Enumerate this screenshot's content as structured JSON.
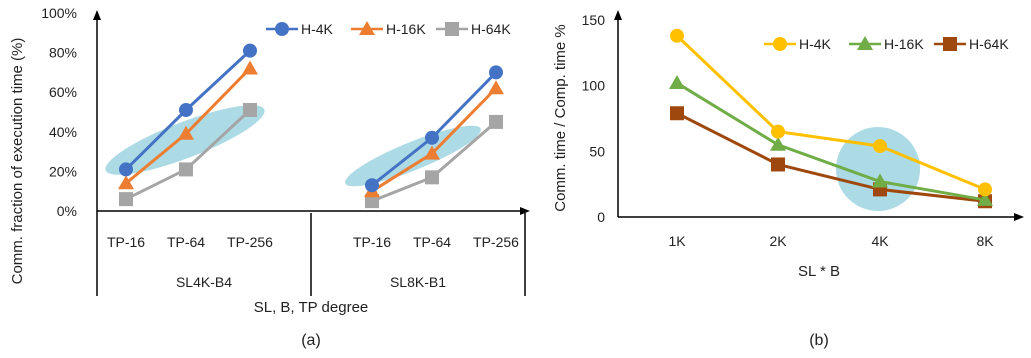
{
  "chart_data": [
    {
      "type": "line",
      "caption": "(a)",
      "title": "",
      "xlabel": "SL, B, TP degree",
      "ylabel": "Comm. fraction of execution time (%)",
      "ylim": [
        0,
        100
      ],
      "y_ticks": [
        "0%",
        "20%",
        "40%",
        "60%",
        "80%",
        "100%"
      ],
      "legend_position": "top-right",
      "groups": [
        {
          "label": "SL4K-B4",
          "categories": [
            "TP-16",
            "TP-64",
            "TP-256"
          ]
        },
        {
          "label": "SL8K-B1",
          "categories": [
            "TP-16",
            "TP-64",
            "TP-256"
          ]
        }
      ],
      "series": [
        {
          "name": "H-4K",
          "color": "#4472C4",
          "marker": "circle",
          "values": [
            [
              21,
              51,
              81
            ],
            [
              13,
              37,
              70
            ]
          ]
        },
        {
          "name": "H-16K",
          "color": "#ED7D31",
          "marker": "triangle",
          "values": [
            [
              14,
              39,
              72
            ],
            [
              10,
              29,
              62
            ]
          ]
        },
        {
          "name": "H-64K",
          "color": "#A5A5A5",
          "marker": "square",
          "values": [
            [
              6,
              21,
              51
            ],
            [
              5,
              17,
              45
            ]
          ]
        }
      ],
      "highlight_color": "#9DD3E0"
    },
    {
      "type": "line",
      "caption": "(b)",
      "title": "",
      "xlabel": "SL * B",
      "ylabel": "Comm. time / Comp. time %",
      "ylim": [
        0,
        150
      ],
      "y_ticks": [
        "0",
        "50",
        "100",
        "150"
      ],
      "categories": [
        "1K",
        "2K",
        "4K",
        "8K"
      ],
      "legend_position": "top-right",
      "series": [
        {
          "name": "H-4K",
          "color": "#FFC000",
          "marker": "circle",
          "values": [
            138,
            65,
            54,
            21
          ]
        },
        {
          "name": "H-16K",
          "color": "#70AD47",
          "marker": "triangle",
          "values": [
            102,
            55,
            27,
            13
          ]
        },
        {
          "name": "H-64K",
          "color": "#9E480E",
          "marker": "square",
          "values": [
            79,
            40,
            21,
            12
          ]
        }
      ],
      "highlight_color": "#9DD3E0"
    }
  ]
}
